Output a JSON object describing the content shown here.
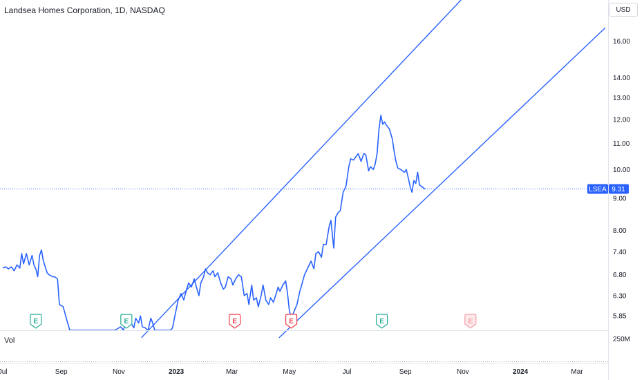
{
  "header": {
    "title": "Landsea Homes Corporation, 1D, NASDAQ",
    "currency": "USD",
    "volume_label": "Vol"
  },
  "colors": {
    "line": "#2962ff",
    "earnings_green": "#22ab94",
    "earnings_red": "#f23645",
    "last_price_bg": "#2962ff"
  },
  "chart_data": {
    "type": "line",
    "symbol": "LSEA",
    "last_price": "9.31",
    "y_scale": "log",
    "ylim": [
      5.55,
      18.6
    ],
    "price_ticks": [
      "16.00",
      "14.00",
      "13.00",
      "12.00",
      "11.00",
      "10.00",
      "9.00",
      "8.00",
      "7.40",
      "6.80",
      "6.30",
      "5.85"
    ],
    "time_ticks": [
      {
        "label": "Jul",
        "date": "2022-07-01"
      },
      {
        "label": "Sep",
        "date": "2022-09-01"
      },
      {
        "label": "Nov",
        "date": "2022-11-01"
      },
      {
        "label": "2023",
        "date": "2023-01-01",
        "bold": true
      },
      {
        "label": "Mar",
        "date": "2023-03-01"
      },
      {
        "label": "May",
        "date": "2023-05-01"
      },
      {
        "label": "Jul",
        "date": "2023-07-01"
      },
      {
        "label": "Sep",
        "date": "2023-09-01"
      },
      {
        "label": "Nov",
        "date": "2023-11-01"
      },
      {
        "label": "2024",
        "date": "2024-01-01",
        "bold": true
      },
      {
        "label": "Mar",
        "date": "2024-03-01"
      }
    ],
    "volume_tick": "250M",
    "series": [
      {
        "points": [
          [
            "2022-07-01",
            6.97
          ],
          [
            "2022-07-04",
            7.0
          ],
          [
            "2022-07-07",
            6.95
          ],
          [
            "2022-07-10",
            7.0
          ],
          [
            "2022-07-13",
            6.9
          ],
          [
            "2022-07-16",
            7.05
          ],
          [
            "2022-07-19",
            6.97
          ],
          [
            "2022-07-21",
            7.35
          ],
          [
            "2022-07-23",
            7.08
          ],
          [
            "2022-07-26",
            7.35
          ],
          [
            "2022-07-29",
            7.05
          ],
          [
            "2022-08-01",
            7.3
          ],
          [
            "2022-08-03",
            7.05
          ],
          [
            "2022-08-05",
            6.95
          ],
          [
            "2022-08-07",
            6.75
          ],
          [
            "2022-08-09",
            7.3
          ],
          [
            "2022-08-11",
            7.45
          ],
          [
            "2022-08-13",
            7.15
          ],
          [
            "2022-08-15",
            7.0
          ],
          [
            "2022-08-17",
            6.85
          ],
          [
            "2022-08-19",
            6.8
          ],
          [
            "2022-08-23",
            6.75
          ],
          [
            "2022-08-25",
            6.75
          ],
          [
            "2022-08-28",
            6.7
          ],
          [
            "2022-08-30",
            6.1
          ],
          [
            "2022-09-03",
            6.05
          ],
          [
            "2022-09-07",
            5.75
          ],
          [
            "2022-09-10",
            5.4
          ],
          [
            "2022-10-28",
            5.4
          ],
          [
            "2022-11-03",
            5.62
          ],
          [
            "2022-11-06",
            5.55
          ],
          [
            "2022-11-09",
            5.8
          ],
          [
            "2022-11-11",
            5.65
          ],
          [
            "2022-11-14",
            5.7
          ],
          [
            "2022-11-17",
            5.6
          ],
          [
            "2022-11-19",
            5.8
          ],
          [
            "2022-11-22",
            5.7
          ],
          [
            "2022-11-24",
            5.85
          ],
          [
            "2022-11-26",
            5.62
          ],
          [
            "2022-11-29",
            5.6
          ],
          [
            "2022-12-02",
            5.55
          ],
          [
            "2022-12-05",
            5.8
          ],
          [
            "2022-12-07",
            5.7
          ],
          [
            "2022-12-09",
            5.55
          ],
          [
            "2022-12-12",
            5.4
          ],
          [
            "2022-12-26",
            5.4
          ],
          [
            "2022-12-28",
            5.6
          ],
          [
            "2022-12-31",
            5.9
          ],
          [
            "2023-01-03",
            6.2
          ],
          [
            "2023-01-06",
            6.35
          ],
          [
            "2023-01-09",
            6.2
          ],
          [
            "2023-01-12",
            6.45
          ],
          [
            "2023-01-14",
            6.6
          ],
          [
            "2023-01-17",
            6.5
          ],
          [
            "2023-01-20",
            6.7
          ],
          [
            "2023-01-23",
            6.45
          ],
          [
            "2023-01-25",
            6.3
          ],
          [
            "2023-01-27",
            6.6
          ],
          [
            "2023-01-30",
            6.75
          ],
          [
            "2023-02-01",
            6.95
          ],
          [
            "2023-02-03",
            6.85
          ],
          [
            "2023-02-06",
            6.8
          ],
          [
            "2023-02-09",
            6.9
          ],
          [
            "2023-02-11",
            6.75
          ],
          [
            "2023-02-14",
            6.85
          ],
          [
            "2023-02-17",
            6.6
          ],
          [
            "2023-02-20",
            6.45
          ],
          [
            "2023-02-22",
            6.5
          ],
          [
            "2023-02-25",
            6.75
          ],
          [
            "2023-02-28",
            6.7
          ],
          [
            "2023-03-02",
            6.55
          ],
          [
            "2023-03-05",
            6.7
          ],
          [
            "2023-03-08",
            6.8
          ],
          [
            "2023-03-11",
            6.75
          ],
          [
            "2023-03-14",
            6.3
          ],
          [
            "2023-03-17",
            6.35
          ],
          [
            "2023-03-19",
            6.1
          ],
          [
            "2023-03-22",
            6.55
          ],
          [
            "2023-03-24",
            6.2
          ],
          [
            "2023-03-27",
            6.25
          ],
          [
            "2023-03-29",
            6.05
          ],
          [
            "2023-04-01",
            6.3
          ],
          [
            "2023-04-03",
            6.55
          ],
          [
            "2023-04-06",
            6.2
          ],
          [
            "2023-04-09",
            6.1
          ],
          [
            "2023-04-11",
            6.25
          ],
          [
            "2023-04-14",
            6.15
          ],
          [
            "2023-04-17",
            6.35
          ],
          [
            "2023-04-19",
            6.5
          ],
          [
            "2023-04-21",
            6.4
          ],
          [
            "2023-04-24",
            6.55
          ],
          [
            "2023-04-27",
            6.65
          ],
          [
            "2023-04-29",
            6.35
          ],
          [
            "2023-05-01",
            5.95
          ],
          [
            "2023-05-03",
            5.8
          ],
          [
            "2023-05-06",
            5.95
          ],
          [
            "2023-05-09",
            6.1
          ],
          [
            "2023-05-12",
            6.4
          ],
          [
            "2023-05-14",
            6.55
          ],
          [
            "2023-05-17",
            6.8
          ],
          [
            "2023-05-20",
            6.95
          ],
          [
            "2023-05-22",
            7.05
          ],
          [
            "2023-05-24",
            7.15
          ],
          [
            "2023-05-27",
            6.95
          ],
          [
            "2023-05-29",
            7.35
          ],
          [
            "2023-06-01",
            7.4
          ],
          [
            "2023-06-04",
            7.25
          ],
          [
            "2023-06-06",
            7.6
          ],
          [
            "2023-06-09",
            7.6
          ],
          [
            "2023-06-12",
            8.1
          ],
          [
            "2023-06-14",
            8.3
          ],
          [
            "2023-06-17",
            7.5
          ],
          [
            "2023-06-19",
            8.4
          ],
          [
            "2023-06-22",
            8.55
          ],
          [
            "2023-06-24",
            8.6
          ],
          [
            "2023-06-27",
            9.2
          ],
          [
            "2023-06-30",
            9.4
          ],
          [
            "2023-07-03",
            10.1
          ],
          [
            "2023-07-05",
            10.4
          ],
          [
            "2023-07-08",
            10.35
          ],
          [
            "2023-07-11",
            10.5
          ],
          [
            "2023-07-13",
            10.6
          ],
          [
            "2023-07-16",
            10.3
          ],
          [
            "2023-07-19",
            10.6
          ],
          [
            "2023-07-21",
            10.55
          ],
          [
            "2023-07-24",
            9.95
          ],
          [
            "2023-07-26",
            10.1
          ],
          [
            "2023-07-29",
            10.0
          ],
          [
            "2023-07-31",
            10.2
          ],
          [
            "2023-08-02",
            10.6
          ],
          [
            "2023-08-04",
            11.6
          ],
          [
            "2023-08-06",
            12.2
          ],
          [
            "2023-08-08",
            11.8
          ],
          [
            "2023-08-10",
            11.9
          ],
          [
            "2023-08-12",
            11.75
          ],
          [
            "2023-08-15",
            11.6
          ],
          [
            "2023-08-18",
            11.2
          ],
          [
            "2023-08-20",
            10.7
          ],
          [
            "2023-08-22",
            10.3
          ],
          [
            "2023-08-24",
            10.05
          ],
          [
            "2023-08-27",
            10.0
          ],
          [
            "2023-08-29",
            9.95
          ],
          [
            "2023-08-31",
            9.9
          ],
          [
            "2023-09-02",
            10.0
          ],
          [
            "2023-09-04",
            9.7
          ],
          [
            "2023-09-06",
            9.4
          ],
          [
            "2023-09-08",
            9.2
          ],
          [
            "2023-09-10",
            9.6
          ],
          [
            "2023-09-12",
            9.5
          ],
          [
            "2023-09-14",
            9.9
          ],
          [
            "2023-09-16",
            9.45
          ],
          [
            "2023-09-18",
            9.4
          ],
          [
            "2023-09-20",
            9.35
          ],
          [
            "2023-09-22",
            9.31
          ]
        ]
      }
    ],
    "trend_channel": {
      "upper": [
        [
          "2022-11-25",
          5.4
        ],
        [
          "2023-10-30",
          18.6
        ]
      ],
      "lower": [
        [
          "2023-04-20",
          5.4
        ],
        [
          "2024-03-31",
          16.8
        ]
      ]
    },
    "earnings": [
      {
        "label": "E",
        "date": "2022-08-05",
        "color": "green"
      },
      {
        "label": "E",
        "date": "2022-11-09",
        "color": "green"
      },
      {
        "label": "E",
        "date": "2023-03-04",
        "color": "red"
      },
      {
        "label": "E",
        "date": "2023-05-03",
        "color": "red"
      },
      {
        "label": "E",
        "date": "2023-08-07",
        "color": "green"
      },
      {
        "label": "E",
        "date": "2023-11-09",
        "color": "red_outline"
      }
    ]
  }
}
